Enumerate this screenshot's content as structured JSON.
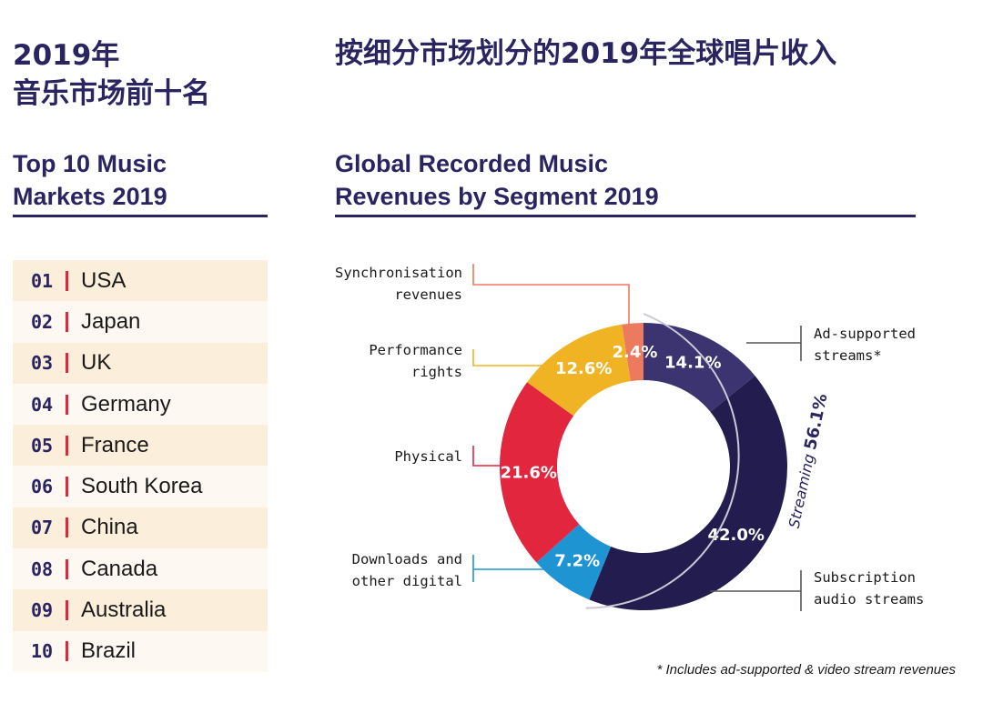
{
  "left": {
    "title_cn": [
      "2019年",
      "音乐市场前十名"
    ],
    "title_en": [
      "Top 10 Music",
      "Markets 2019"
    ],
    "markets": [
      {
        "rank": "01",
        "country": "USA"
      },
      {
        "rank": "02",
        "country": "Japan"
      },
      {
        "rank": "03",
        "country": "UK"
      },
      {
        "rank": "04",
        "country": "Germany"
      },
      {
        "rank": "05",
        "country": "France"
      },
      {
        "rank": "06",
        "country": "South Korea"
      },
      {
        "rank": "07",
        "country": "China"
      },
      {
        "rank": "08",
        "country": "Canada"
      },
      {
        "rank": "09",
        "country": "Australia"
      },
      {
        "rank": "10",
        "country": "Brazil"
      }
    ]
  },
  "right": {
    "title_cn": "按细分市场划分的2019年全球唱片收入",
    "title_en": [
      "Global Recorded Music",
      "Revenues by Segment 2019"
    ],
    "footnote": "* Includes ad-supported & video stream revenues",
    "streaming_label": "Streaming",
    "streaming_value": "56.1%"
  },
  "chart_data": {
    "type": "pie",
    "title": "Global Recorded Music Revenues by Segment 2019",
    "slices": [
      {
        "label": "Ad-supported streams*",
        "value": 14.1,
        "text": "14.1%",
        "color": "#3b3470"
      },
      {
        "label": "Subscription audio streams",
        "value": 42.0,
        "text": "42.0%",
        "color": "#221c4f"
      },
      {
        "label": "Downloads and other digital",
        "value": 7.2,
        "text": "7.2%",
        "color": "#1e94d3"
      },
      {
        "label": "Physical",
        "value": 21.6,
        "text": "21.6%",
        "color": "#e2263e"
      },
      {
        "label": "Performance rights",
        "value": 12.6,
        "text": "12.6%",
        "color": "#f0b323"
      },
      {
        "label": "Synchronisation revenues",
        "value": 2.4,
        "text": "2.4%",
        "color": "#ec7a5e"
      }
    ],
    "group": {
      "label": "Streaming",
      "value": 56.1,
      "text": "56.1%"
    }
  },
  "colors": {
    "navy": "#2a2561",
    "accent_red": "#e0263c",
    "row_light": "#fdf8f1",
    "row_dark": "#fbeedb"
  }
}
